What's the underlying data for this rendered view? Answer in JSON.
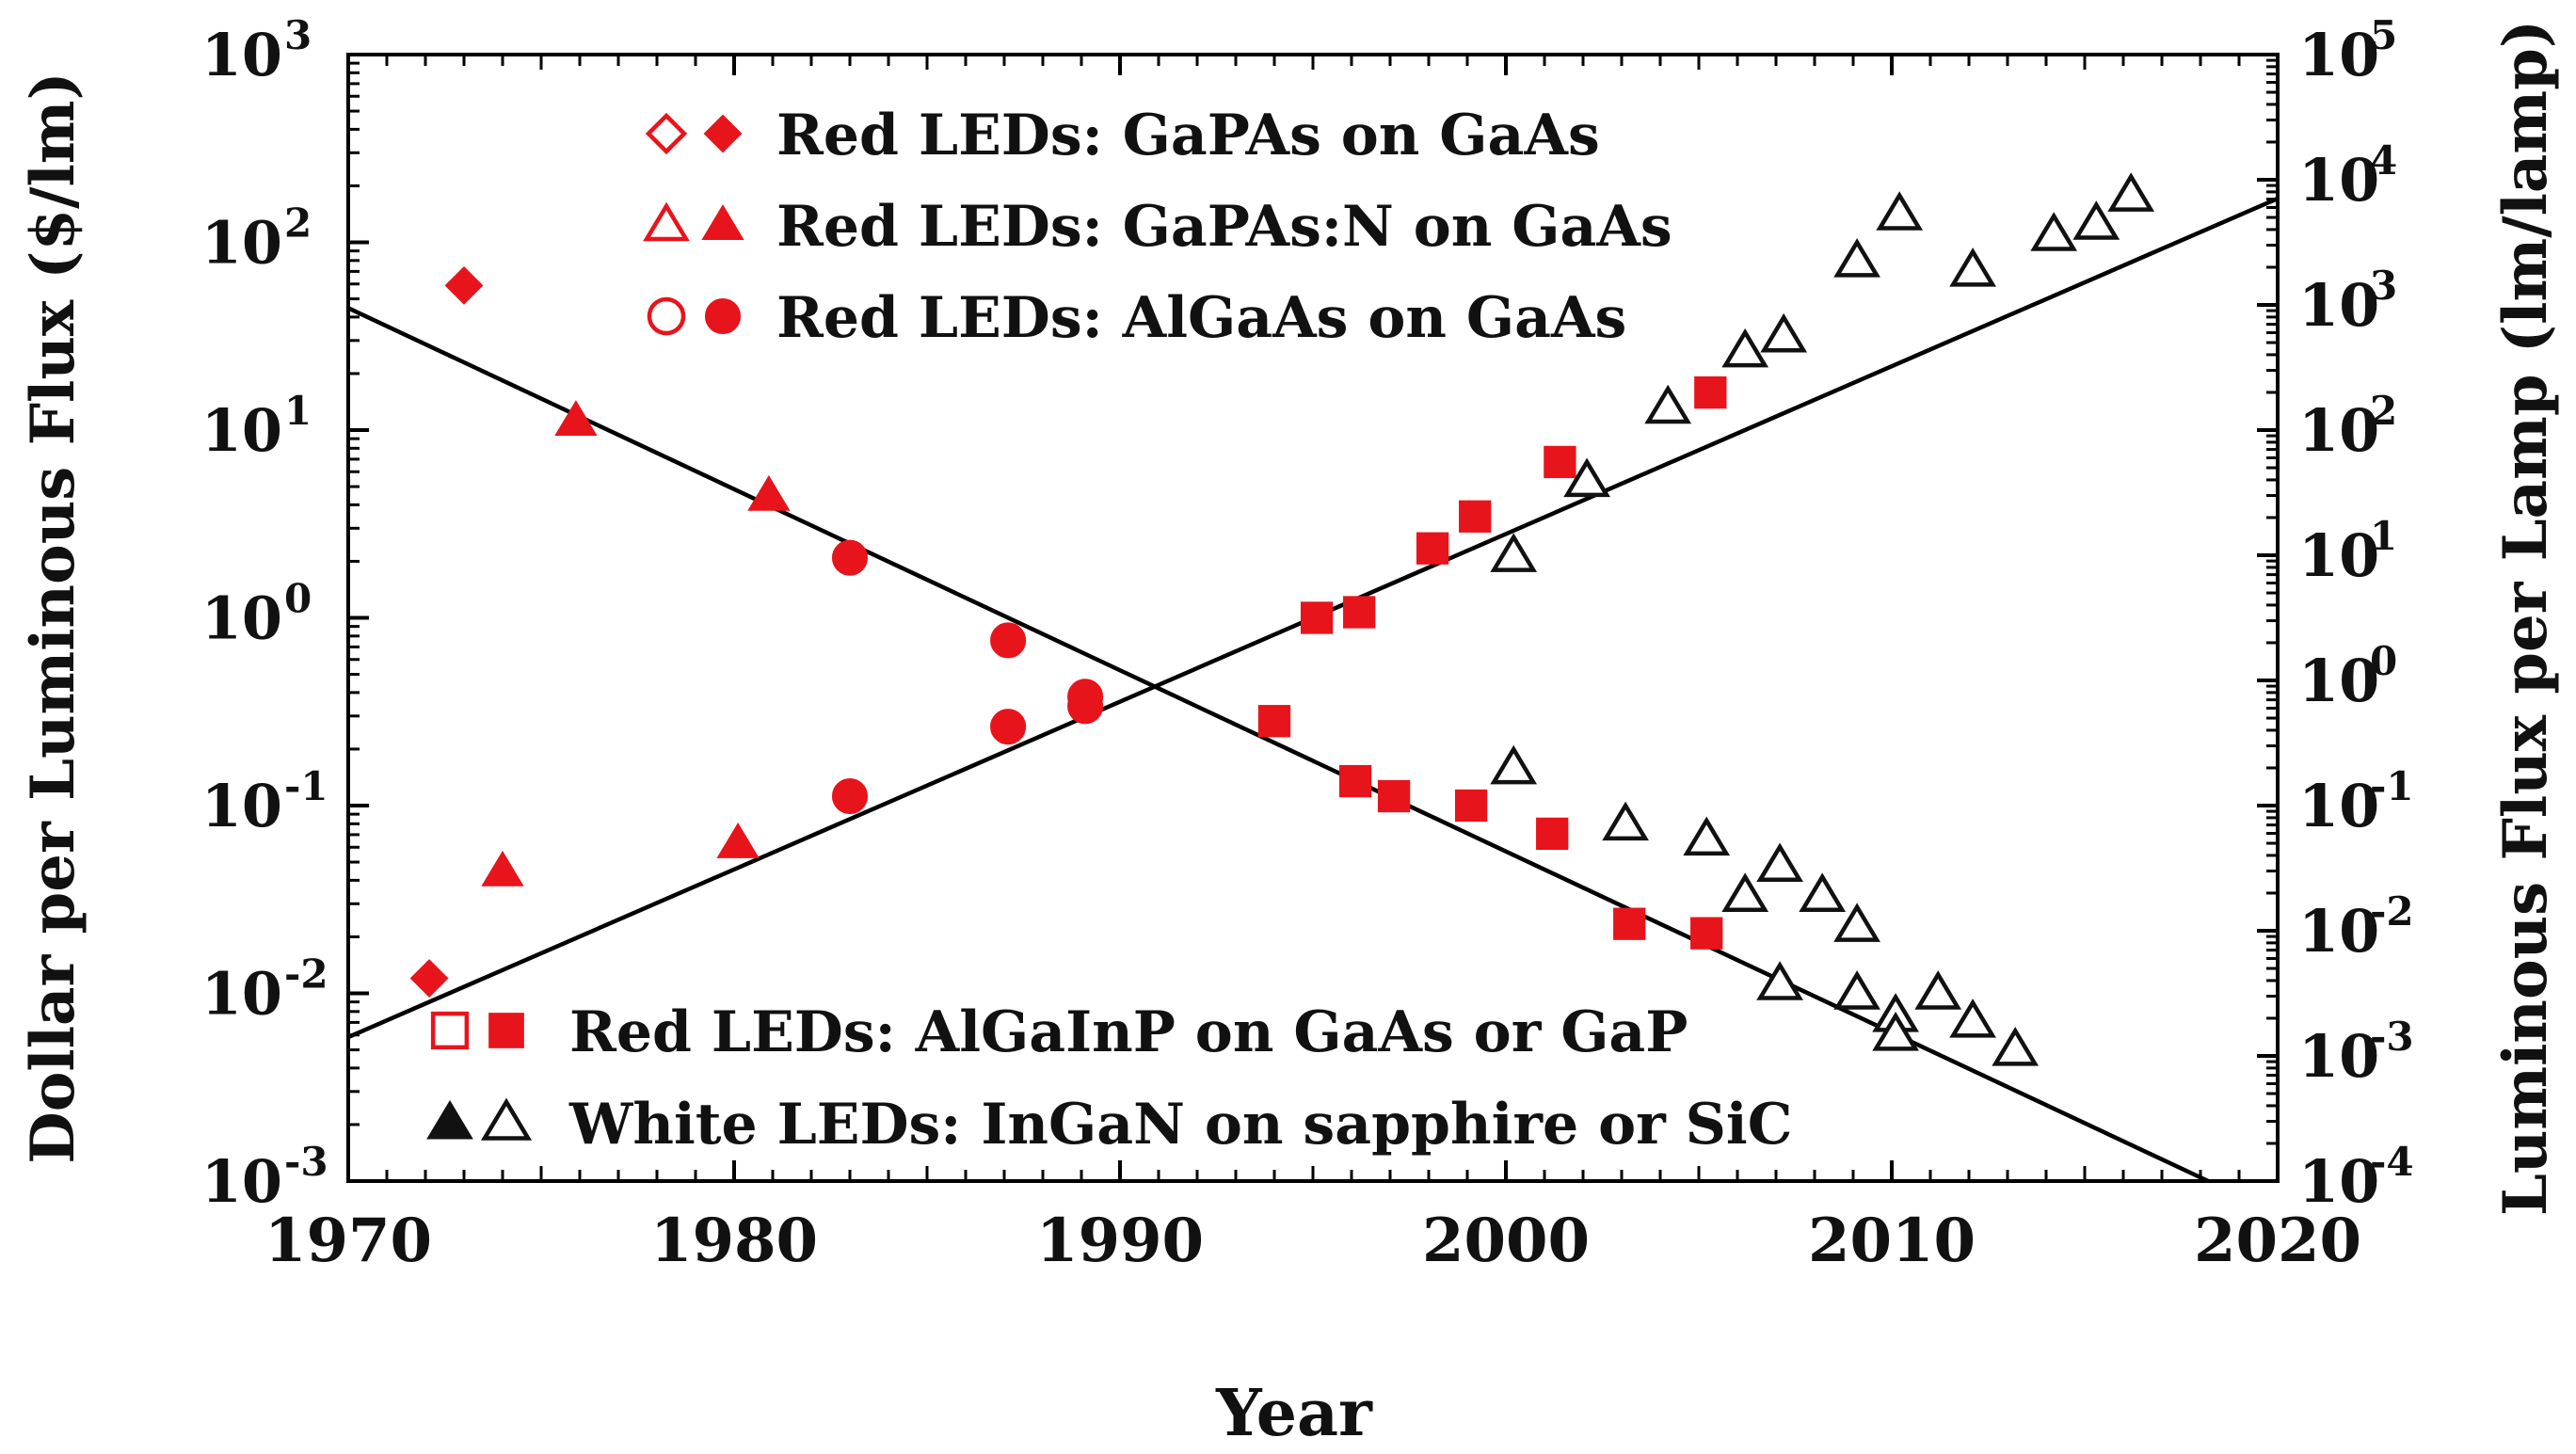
{
  "chart_data": {
    "type": "scatter",
    "xlabel": "Year",
    "ylabel_left": "Dollar per Luminous Flux ($/lm)",
    "ylabel_right": "Luminous Flux per Lamp (lm/lamp)",
    "xlim": [
      1970,
      2020
    ],
    "ylim_left_log10": [
      -3,
      3
    ],
    "ylim_right_log10": [
      -4,
      5
    ],
    "x_ticks": [
      "1970",
      "1980",
      "1990",
      "2000",
      "2010",
      "2020"
    ],
    "y_ticks_left": [
      {
        "base": "10",
        "exp": "-3"
      },
      {
        "base": "10",
        "exp": "-2"
      },
      {
        "base": "10",
        "exp": "-1"
      },
      {
        "base": "10",
        "exp": "0"
      },
      {
        "base": "10",
        "exp": "1"
      },
      {
        "base": "10",
        "exp": "2"
      },
      {
        "base": "10",
        "exp": "3"
      }
    ],
    "y_ticks_right": [
      {
        "base": "10",
        "exp": "-4"
      },
      {
        "base": "10",
        "exp": "-3"
      },
      {
        "base": "10",
        "exp": "-2"
      },
      {
        "base": "10",
        "exp": "-1"
      },
      {
        "base": "10",
        "exp": "0"
      },
      {
        "base": "10",
        "exp": "1"
      },
      {
        "base": "10",
        "exp": "2"
      },
      {
        "base": "10",
        "exp": "3"
      },
      {
        "base": "10",
        "exp": "4"
      },
      {
        "base": "10",
        "exp": "5"
      }
    ],
    "colors": {
      "red": "#e8141b",
      "black": "#111111"
    },
    "legend_top": [
      {
        "label": "Red LEDs: GaPAs on GaAs",
        "shape": "diamond",
        "color": "red"
      },
      {
        "label": "Red LEDs: GaPAs:N on GaAs",
        "shape": "triangle",
        "color": "red"
      },
      {
        "label": "Red LEDs: AlGaAs on GaAs",
        "shape": "circle",
        "color": "red"
      }
    ],
    "legend_bottom": [
      {
        "label": "Red LEDs: AlGaInP on GaAs or GaP",
        "shape": "square",
        "color": "red",
        "order": "open-first"
      },
      {
        "label": "White LEDs: InGaN on sapphire or SiC",
        "shape": "triangle",
        "color": "black",
        "order": "filled-first"
      }
    ],
    "trend_lines": [
      {
        "name": "cost trend ($/lm)",
        "axis": "left",
        "from": [
          1970,
          1.65
        ],
        "to": [
          2018.2,
          -3.0
        ]
      },
      {
        "name": "flux trend (lm/lamp)",
        "axis": "right",
        "from": [
          1970,
          -2.85
        ],
        "to": [
          2020,
          3.85
        ]
      }
    ],
    "series": [
      {
        "name": "GaPAs on GaAs",
        "shape": "diamond",
        "color": "red",
        "filled": true,
        "points": [
          [
            1972.1,
            -1.92
          ],
          [
            1973.0,
            1.77
          ]
        ]
      },
      {
        "name": "GaPAs:N on GaAs",
        "shape": "triangle",
        "color": "red",
        "filled": true,
        "points": [
          [
            1974.0,
            -1.35
          ],
          [
            1975.9,
            1.05
          ],
          [
            1980.1,
            -1.2
          ],
          [
            1980.9,
            0.65
          ]
        ]
      },
      {
        "name": "AlGaAs on GaAs",
        "shape": "circle",
        "color": "red",
        "filled": true,
        "points": [
          [
            1983.0,
            -0.95
          ],
          [
            1983.0,
            0.32
          ],
          [
            1987.1,
            -0.58
          ],
          [
            1987.1,
            -0.12
          ],
          [
            1989.1,
            -0.47
          ],
          [
            1989.1,
            -0.42
          ]
        ]
      },
      {
        "name": "AlGaInP on GaAs or GaP",
        "shape": "square",
        "color": "red",
        "filled": true,
        "points": [
          [
            1994.0,
            -0.55
          ],
          [
            1995.1,
            0.0
          ],
          [
            1996.1,
            -0.87
          ],
          [
            1996.2,
            0.03
          ],
          [
            1997.1,
            -0.95
          ],
          [
            1998.1,
            0.37
          ],
          [
            1999.1,
            -1.0
          ],
          [
            1999.2,
            0.54
          ],
          [
            2001.2,
            -1.15
          ],
          [
            2001.4,
            0.83
          ],
          [
            2003.2,
            -1.63
          ],
          [
            2005.2,
            -1.68
          ],
          [
            2005.3,
            1.2
          ]
        ]
      },
      {
        "name": "InGaN on sapphire or SiC",
        "shape": "triangle",
        "color": "black",
        "filled": false,
        "points": [
          [
            2000.2,
            -0.8
          ],
          [
            2000.2,
            0.33
          ],
          [
            2002.1,
            0.73
          ],
          [
            2003.1,
            -1.1
          ],
          [
            2004.2,
            1.12
          ],
          [
            2005.2,
            -1.18
          ],
          [
            2006.2,
            -1.48
          ],
          [
            2006.2,
            1.42
          ],
          [
            2007.1,
            -1.32
          ],
          [
            2007.1,
            -1.95
          ],
          [
            2007.2,
            1.5
          ],
          [
            2008.2,
            -1.48
          ],
          [
            2009.1,
            -1.64
          ],
          [
            2009.1,
            -2.0
          ],
          [
            2009.1,
            1.9
          ],
          [
            2010.1,
            -2.12
          ],
          [
            2010.1,
            -2.22
          ],
          [
            2010.2,
            2.15
          ],
          [
            2011.2,
            -2.0
          ],
          [
            2012.1,
            -2.15
          ],
          [
            2012.1,
            1.85
          ],
          [
            2013.2,
            -2.3
          ],
          [
            2014.2,
            2.04
          ],
          [
            2015.3,
            2.1
          ],
          [
            2016.2,
            2.25
          ]
        ]
      }
    ]
  }
}
